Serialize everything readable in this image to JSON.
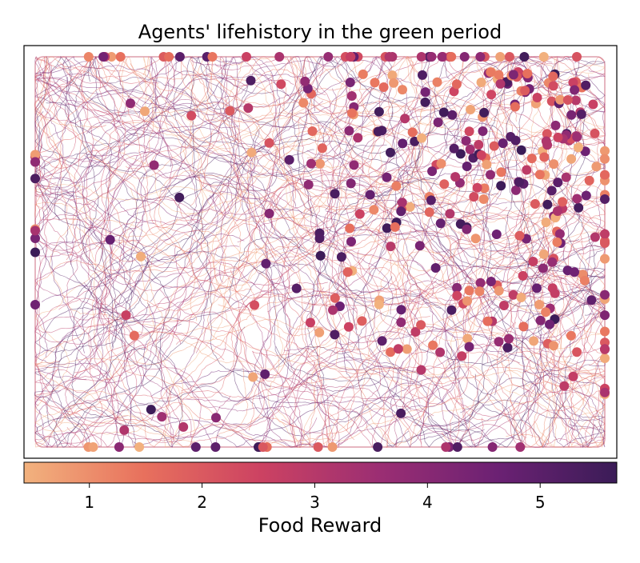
{
  "chart_data": {
    "type": "scatter",
    "title": "Agents' lifehistory in the green period",
    "xlabel": "",
    "ylabel": "",
    "x_ticks_shown": false,
    "y_ticks_shown": false,
    "grid": false,
    "colormap": [
      "#f2b27e",
      "#e8715d",
      "#cc4262",
      "#9b2e73",
      "#6b2173",
      "#3b1c57"
    ],
    "series": [
      {
        "type": "trajectories",
        "count_estimate": 300,
        "colored_by": "Food Reward"
      },
      {
        "type": "points",
        "colored_by": "Food Reward"
      }
    ],
    "colorbar": {
      "label": "Food Reward",
      "range": [
        0.42,
        5.68
      ],
      "ticks": [
        "1",
        "2",
        "3",
        "4",
        "5"
      ],
      "tick_values": [
        1,
        2,
        3,
        4,
        5
      ],
      "placement": "bottom"
    }
  }
}
